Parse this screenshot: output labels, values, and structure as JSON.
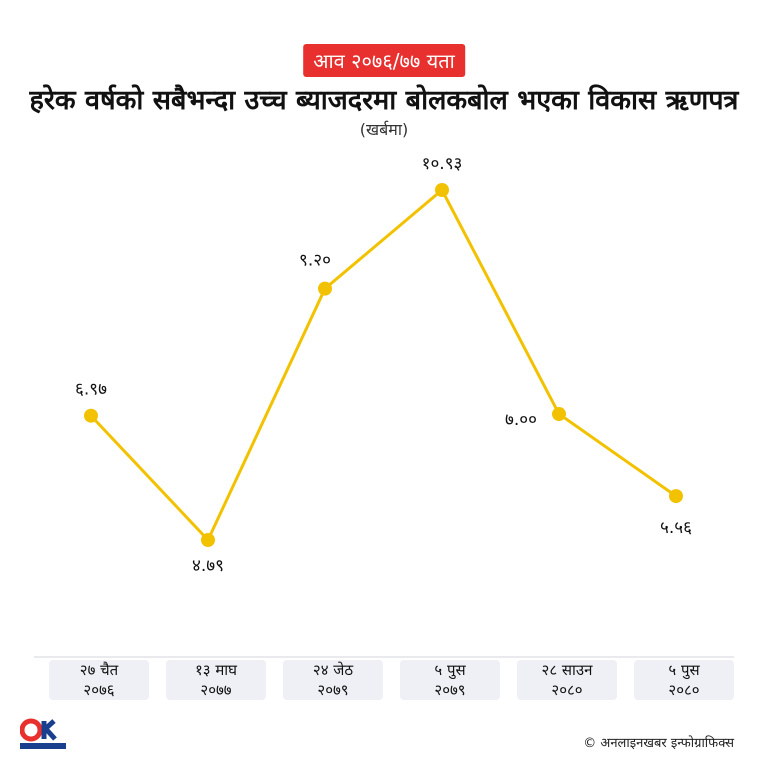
{
  "chart_data": {
    "type": "line",
    "badge": "आव २०७६/७७ यता",
    "title": "हरेक वर्षको सबैभन्दा उच्च ब्याजदरमा बोलकबोल भएका विकास ऋणपत्र",
    "subtitle": "(खर्बमा)",
    "source": "© अनलाइनखबर इन्फोग्राफिक्स",
    "categories": [
      "२७ चैत\n२०७६",
      "१३ माघ\n२०७७",
      "२४ जेठ\n२०७९",
      "५ पुस\n२०७९",
      "२८ साउन\n२०८०",
      "५ पुस\n२०८०"
    ],
    "values": [
      6.97,
      4.79,
      9.2,
      10.93,
      7.0,
      5.56
    ],
    "value_labels": [
      "६.९७",
      "४.७९",
      "९.२०",
      "१०.९३",
      "७.००",
      "५.५६"
    ],
    "color": "#f2c200"
  }
}
